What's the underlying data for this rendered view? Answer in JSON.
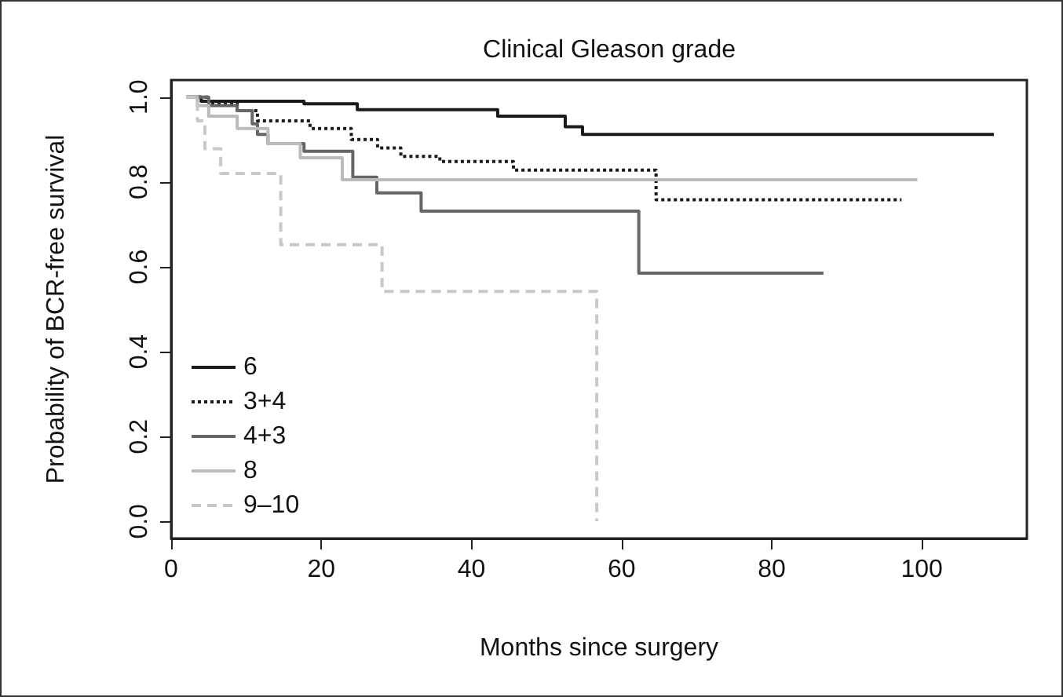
{
  "chart_data": {
    "type": "step",
    "title": "Clinical Gleason grade",
    "xlabel": "Months since surgery",
    "ylabel": "Probability of BCR-free survival",
    "xlim": [
      0,
      114
    ],
    "ylim": [
      -0.04,
      1.04
    ],
    "xticks": [
      0,
      20,
      40,
      60,
      80,
      100
    ],
    "yticks": [
      {
        "value": 0,
        "label": "0.0"
      },
      {
        "value": 0.2,
        "label": "0.2"
      },
      {
        "value": 0.4,
        "label": "0.4"
      },
      {
        "value": 0.6,
        "label": "0.6"
      },
      {
        "value": 0.8,
        "label": "0.8"
      },
      {
        "value": 1,
        "label": "1.0"
      }
    ],
    "grid": false,
    "legend": "bottom left",
    "marker": "none",
    "series": [
      {
        "name": "6",
        "color": "#1a1a1a",
        "line_style": "solid",
        "x": [
          2,
          4,
          17.7,
          24.8,
          43.5,
          52.5,
          54.8,
          109.6
        ],
        "values": [
          1,
          0.99,
          0.984,
          0.97,
          0.955,
          0.93,
          0.912,
          0.912
        ]
      },
      {
        "name": "3+4",
        "color": "#1a1a1a",
        "line_style": "dotted",
        "x": [
          2,
          5,
          8.8,
          11.5,
          18.5,
          24,
          27.5,
          30.6,
          35.8,
          45.6,
          64.6,
          97.3
        ],
        "values": [
          1,
          0.985,
          0.968,
          0.944,
          0.926,
          0.9,
          0.88,
          0.86,
          0.848,
          0.828,
          0.758,
          0.758
        ]
      },
      {
        "name": "4+3",
        "color": "#666666",
        "line_style": "solid",
        "x": [
          2,
          5,
          8.8,
          10.8,
          11.5,
          12.9,
          17.7,
          24.2,
          27.4,
          33.3,
          62.3,
          86.9
        ],
        "values": [
          1,
          0.98,
          0.968,
          0.937,
          0.912,
          0.89,
          0.872,
          0.811,
          0.774,
          0.731,
          0.585,
          0.585
        ]
      },
      {
        "name": "8",
        "color": "#bbbbbb",
        "line_style": "solid",
        "x": [
          2,
          3.5,
          5,
          8.8,
          12.9,
          17.2,
          22.8,
          99.4
        ],
        "values": [
          1,
          0.98,
          0.955,
          0.926,
          0.89,
          0.857,
          0.805,
          0.805
        ]
      },
      {
        "name": "9–10",
        "color": "#c8c8c8",
        "line_style": "dashed",
        "x": [
          2,
          3.5,
          4.5,
          6.6,
          14.6,
          28.1,
          56.7
        ],
        "values": [
          1,
          0.944,
          0.878,
          0.82,
          0.652,
          0.542,
          0
        ]
      }
    ]
  }
}
